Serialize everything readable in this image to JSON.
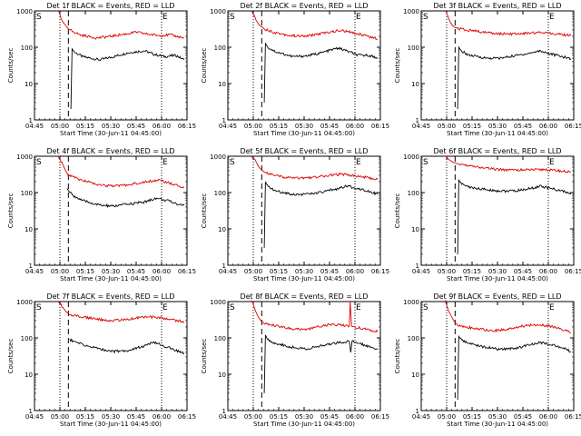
{
  "figure": {
    "subtitle_common": "Start Time (30-Jun-11 04:45:00)"
  },
  "chart_data": [
    {
      "type": "line",
      "title": "Det 1f BLACK = Events, RED = LLD",
      "detector": "1f",
      "markers": [
        "S",
        "E"
      ],
      "xlabel": "Start Time (30-Jun-11 04:45:00)",
      "ylabel": "Counts/sec",
      "yscale": "log",
      "ylim": [
        1,
        1000
      ],
      "xlim": [
        0,
        5400
      ],
      "x_tick_labels": [
        "04:45",
        "05:00",
        "05:15",
        "05:30",
        "05:45",
        "06:00",
        "06:15"
      ],
      "y_tick_labels": [
        "1",
        "10",
        "100",
        "1000"
      ],
      "dotted_vlines_s": [
        900,
        4500
      ],
      "dashed_vline_s": 1200,
      "series": [
        {
          "name": "Events",
          "color": "#000000",
          "x": [
            1290,
            1330,
            1400,
            1700,
            2300,
            2800,
            3300,
            3900,
            4200,
            4600,
            5000,
            5300
          ],
          "y": [
            2,
            90,
            75,
            55,
            45,
            55,
            70,
            80,
            65,
            55,
            60,
            45
          ]
        },
        {
          "name": "LLD",
          "color": "#dd0000",
          "x": [
            850,
            1000,
            1100,
            1200,
            1300,
            1600,
            2200,
            2700,
            3200,
            3600,
            4000,
            4400,
            4800,
            5300
          ],
          "y": [
            1000,
            500,
            400,
            320,
            290,
            220,
            180,
            200,
            230,
            260,
            230,
            210,
            220,
            180
          ]
        }
      ]
    },
    {
      "type": "line",
      "title": "Det 2f BLACK = Events, RED = LLD",
      "detector": "2f",
      "markers": [
        "S",
        "E"
      ],
      "xlabel": "Start Time (30-Jun-11 04:45:00)",
      "ylabel": "Counts/sec",
      "yscale": "log",
      "ylim": [
        1,
        1000
      ],
      "xlim": [
        0,
        5400
      ],
      "x_tick_labels": [
        "04:45",
        "05:00",
        "05:15",
        "05:30",
        "05:45",
        "06:00",
        "06:15"
      ],
      "y_tick_labels": [
        "1",
        "10",
        "100",
        "1000"
      ],
      "dotted_vlines_s": [
        900,
        4500
      ],
      "dashed_vline_s": 1200,
      "series": [
        {
          "name": "Events",
          "color": "#000000",
          "x": [
            1290,
            1330,
            1400,
            1700,
            2300,
            2800,
            3300,
            3900,
            4200,
            4600,
            5000,
            5300
          ],
          "y": [
            3,
            130,
            100,
            75,
            55,
            58,
            70,
            95,
            80,
            60,
            60,
            50
          ]
        },
        {
          "name": "LLD",
          "color": "#dd0000",
          "x": [
            850,
            1000,
            1100,
            1200,
            1300,
            1600,
            2200,
            2700,
            3200,
            3600,
            4000,
            4400,
            4800,
            5300
          ],
          "y": [
            1000,
            550,
            420,
            360,
            320,
            260,
            210,
            200,
            230,
            260,
            290,
            250,
            220,
            170
          ]
        }
      ]
    },
    {
      "type": "line",
      "title": "Det 3f BLACK = Events, RED = LLD",
      "detector": "3f",
      "markers": [
        "S",
        "E"
      ],
      "xlabel": "Start Time (30-Jun-11 04:45:00)",
      "ylabel": "Counts/sec",
      "yscale": "log",
      "ylim": [
        1,
        1000
      ],
      "xlim": [
        0,
        5400
      ],
      "x_tick_labels": [
        "04:45",
        "05:00",
        "05:15",
        "05:30",
        "05:45",
        "06:00",
        "06:15"
      ],
      "y_tick_labels": [
        "1",
        "10",
        "100",
        "1000"
      ],
      "dotted_vlines_s": [
        900,
        4500
      ],
      "dashed_vline_s": 1200,
      "series": [
        {
          "name": "Events",
          "color": "#000000",
          "x": [
            1290,
            1330,
            1400,
            1700,
            2300,
            2800,
            3300,
            3900,
            4200,
            4600,
            5000,
            5300
          ],
          "y": [
            2,
            100,
            80,
            60,
            50,
            50,
            58,
            70,
            80,
            65,
            55,
            48
          ]
        },
        {
          "name": "LLD",
          "color": "#dd0000",
          "x": [
            850,
            1000,
            1100,
            1200,
            1300,
            1600,
            2200,
            2700,
            3200,
            3600,
            4000,
            4400,
            4800,
            5300
          ],
          "y": [
            1000,
            550,
            400,
            350,
            330,
            300,
            260,
            240,
            230,
            240,
            250,
            260,
            230,
            210
          ]
        }
      ]
    },
    {
      "type": "line",
      "title": "Det 4f BLACK = Events, RED = LLD",
      "detector": "4f",
      "markers": [
        "S",
        "E"
      ],
      "xlabel": "Start Time (30-Jun-11 04:45:00)",
      "ylabel": "Counts/sec",
      "yscale": "log",
      "ylim": [
        1,
        1000
      ],
      "xlim": [
        0,
        5400
      ],
      "x_tick_labels": [
        "04:45",
        "05:00",
        "05:15",
        "05:30",
        "05:45",
        "06:00",
        "06:15"
      ],
      "y_tick_labels": [
        "1",
        "10",
        "100",
        "1000"
      ],
      "dotted_vlines_s": [
        900,
        4500
      ],
      "dashed_vline_s": 1200,
      "series": [
        {
          "name": "Events",
          "color": "#000000",
          "x": [
            1150,
            1250,
            1400,
            1700,
            2300,
            2800,
            3300,
            3900,
            4300,
            4700,
            5000,
            5300
          ],
          "y": [
            130,
            100,
            80,
            60,
            45,
            42,
            48,
            55,
            70,
            60,
            50,
            45
          ]
        },
        {
          "name": "LLD",
          "color": "#dd0000",
          "x": [
            850,
            1000,
            1100,
            1200,
            1400,
            1700,
            2200,
            2700,
            3200,
            3600,
            4000,
            4400,
            4800,
            5300
          ],
          "y": [
            1000,
            600,
            400,
            300,
            260,
            220,
            170,
            150,
            160,
            180,
            200,
            220,
            180,
            140
          ]
        }
      ]
    },
    {
      "type": "line",
      "title": "Det 5f BLACK = Events, RED = LLD",
      "detector": "5f",
      "markers": [
        "S",
        "E"
      ],
      "xlabel": "Start Time (30-Jun-11 04:45:00)",
      "ylabel": "Counts/sec",
      "yscale": "log",
      "ylim": [
        1,
        1000
      ],
      "xlim": [
        0,
        5400
      ],
      "x_tick_labels": [
        "04:45",
        "05:00",
        "05:15",
        "05:30",
        "05:45",
        "06:00",
        "06:15"
      ],
      "y_tick_labels": [
        "1",
        "10",
        "100",
        "1000"
      ],
      "dotted_vlines_s": [
        900,
        4500
      ],
      "dashed_vline_s": 1200,
      "series": [
        {
          "name": "Events",
          "color": "#000000",
          "x": [
            1290,
            1330,
            1400,
            1700,
            2300,
            2800,
            3300,
            3900,
            4200,
            4600,
            5000,
            5300
          ],
          "y": [
            3,
            200,
            150,
            110,
            90,
            90,
            100,
            130,
            150,
            130,
            110,
            90
          ]
        },
        {
          "name": "LLD",
          "color": "#dd0000",
          "x": [
            850,
            1000,
            1100,
            1200,
            1300,
            1600,
            2200,
            2700,
            3200,
            3600,
            4000,
            4400,
            4800,
            5300
          ],
          "y": [
            1000,
            700,
            500,
            420,
            360,
            300,
            250,
            250,
            270,
            300,
            320,
            300,
            270,
            230
          ]
        }
      ]
    },
    {
      "type": "line",
      "title": "Det 6f BLACK = Events, RED = LLD",
      "detector": "6f",
      "markers": [
        "S",
        "E"
      ],
      "xlabel": "Start Time (30-Jun-11 04:45:00)",
      "ylabel": "Counts/sec",
      "yscale": "log",
      "ylim": [
        1,
        1000
      ],
      "xlim": [
        0,
        5400
      ],
      "x_tick_labels": [
        "04:45",
        "05:00",
        "05:15",
        "05:30",
        "05:45",
        "06:00",
        "06:15"
      ],
      "y_tick_labels": [
        "1",
        "10",
        "100",
        "1000"
      ],
      "dotted_vlines_s": [
        900,
        4500
      ],
      "dashed_vline_s": 1200,
      "series": [
        {
          "name": "Events",
          "color": "#000000",
          "x": [
            1290,
            1330,
            1400,
            1700,
            2300,
            2800,
            3300,
            3900,
            4200,
            4600,
            5000,
            5300
          ],
          "y": [
            2,
            220,
            180,
            140,
            120,
            110,
            110,
            130,
            150,
            130,
            110,
            90
          ]
        },
        {
          "name": "LLD",
          "color": "#dd0000",
          "x": [
            850,
            1000,
            1100,
            1200,
            1300,
            1600,
            2200,
            2700,
            3200,
            3600,
            4000,
            4400,
            4800,
            5300
          ],
          "y": [
            1000,
            800,
            700,
            650,
            620,
            560,
            480,
            430,
            420,
            420,
            420,
            430,
            400,
            370
          ]
        }
      ]
    },
    {
      "type": "line",
      "title": "Det 7f BLACK = Events, RED = LLD",
      "detector": "7f",
      "markers": [
        "S",
        "E"
      ],
      "xlabel": "Start Time (30-Jun-11 04:45:00)",
      "ylabel": "Counts/sec",
      "yscale": "log",
      "ylim": [
        1,
        1000
      ],
      "xlim": [
        0,
        5400
      ],
      "x_tick_labels": [
        "04:45",
        "05:00",
        "05:15",
        "05:30",
        "05:45",
        "06:00",
        "06:15"
      ],
      "y_tick_labels": [
        "1",
        "10",
        "100",
        "1000"
      ],
      "dotted_vlines_s": [
        900,
        4500
      ],
      "dashed_vline_s": 1200,
      "series": [
        {
          "name": "Events",
          "color": "#000000",
          "x": [
            1250,
            1400,
            1700,
            2300,
            2800,
            3300,
            3900,
            4200,
            4600,
            5000,
            5300
          ],
          "y": [
            90,
            80,
            65,
            50,
            42,
            45,
            60,
            75,
            60,
            45,
            38
          ]
        },
        {
          "name": "LLD",
          "color": "#dd0000",
          "x": [
            850,
            1000,
            1100,
            1200,
            1400,
            1700,
            2200,
            2700,
            3200,
            3600,
            4000,
            4400,
            4800,
            5300
          ],
          "y": [
            1000,
            700,
            550,
            450,
            420,
            380,
            330,
            300,
            320,
            350,
            380,
            360,
            320,
            280
          ]
        }
      ]
    },
    {
      "type": "line",
      "title": "Det 8f BLACK = Events, RED = LLD",
      "detector": "8f",
      "markers": [
        "S",
        "E"
      ],
      "xlabel": "Start Time (30-Jun-11 04:45:00)",
      "ylabel": "Counts/sec",
      "yscale": "log",
      "ylim": [
        1,
        1000
      ],
      "xlim": [
        0,
        5400
      ],
      "x_tick_labels": [
        "04:45",
        "05:00",
        "05:15",
        "05:30",
        "05:45",
        "06:00",
        "06:15"
      ],
      "y_tick_labels": [
        "1",
        "10",
        "100",
        "1000"
      ],
      "dotted_vlines_s": [
        900,
        4500
      ],
      "dashed_vline_s": 1200,
      "series": [
        {
          "name": "Events",
          "color": "#000000",
          "x": [
            1290,
            1330,
            1400,
            1700,
            2300,
            2800,
            3300,
            3900,
            4300,
            4350,
            4400,
            4800,
            5300
          ],
          "y": [
            3,
            120,
            90,
            70,
            55,
            50,
            60,
            75,
            80,
            40,
            80,
            65,
            50
          ]
        },
        {
          "name": "LLD",
          "color": "#dd0000",
          "x": [
            850,
            1000,
            1100,
            1200,
            1300,
            1600,
            2200,
            2700,
            3200,
            3600,
            4000,
            4300,
            4330,
            4380,
            4800,
            5300
          ],
          "y": [
            1000,
            500,
            350,
            280,
            250,
            220,
            180,
            170,
            200,
            230,
            230,
            210,
            1000,
            200,
            180,
            150
          ]
        }
      ]
    },
    {
      "type": "line",
      "title": "Det 9f BLACK = Events, RED = LLD",
      "detector": "9f",
      "markers": [
        "S",
        "E"
      ],
      "xlabel": "Start Time (30-Jun-11 04:45:00)",
      "ylabel": "Counts/sec",
      "yscale": "log",
      "ylim": [
        1,
        1000
      ],
      "xlim": [
        0,
        5400
      ],
      "x_tick_labels": [
        "04:45",
        "05:00",
        "05:15",
        "05:30",
        "05:45",
        "06:00",
        "06:15"
      ],
      "y_tick_labels": [
        "1",
        "10",
        "100",
        "1000"
      ],
      "dotted_vlines_s": [
        900,
        4500
      ],
      "dashed_vline_s": 1200,
      "series": [
        {
          "name": "Events",
          "color": "#000000",
          "x": [
            1290,
            1330,
            1400,
            1700,
            2300,
            2800,
            3300,
            3900,
            4200,
            4600,
            5000,
            5300
          ],
          "y": [
            2,
            110,
            90,
            70,
            55,
            48,
            52,
            65,
            75,
            65,
            55,
            42
          ]
        },
        {
          "name": "LLD",
          "color": "#dd0000",
          "x": [
            850,
            1000,
            1100,
            1200,
            1300,
            1600,
            2200,
            2700,
            3200,
            3600,
            4000,
            4400,
            4800,
            5300
          ],
          "y": [
            1000,
            500,
            350,
            260,
            230,
            200,
            170,
            160,
            180,
            210,
            230,
            220,
            190,
            140
          ]
        }
      ]
    }
  ]
}
